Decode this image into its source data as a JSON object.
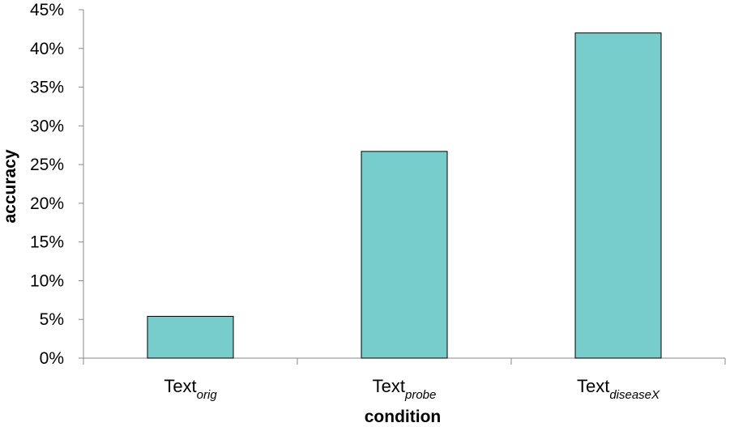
{
  "chart_data": {
    "type": "bar",
    "categories": [
      {
        "base": "Text",
        "sub": "orig"
      },
      {
        "base": "Text",
        "sub": "probe"
      },
      {
        "base": "Text",
        "sub": "diseaseX"
      }
    ],
    "values": [
      0.054,
      0.267,
      0.42
    ],
    "xlabel": "condition",
    "ylabel": "accuracy",
    "ylim": [
      0,
      0.45
    ],
    "yticks": [
      {
        "value": 0,
        "label": "0%"
      },
      {
        "value": 0.05,
        "label": "5%"
      },
      {
        "value": 0.1,
        "label": "10%"
      },
      {
        "value": 0.15,
        "label": "15%"
      },
      {
        "value": 0.2,
        "label": "20%"
      },
      {
        "value": 0.25,
        "label": "25%"
      },
      {
        "value": 0.3,
        "label": "30%"
      },
      {
        "value": 0.35,
        "label": "35%"
      },
      {
        "value": 0.4,
        "label": "40%"
      },
      {
        "value": 0.45,
        "label": "45%"
      }
    ],
    "grid": false,
    "legend": "none",
    "bar_color": "#77cccc",
    "bar_edge_color": "#000000"
  }
}
